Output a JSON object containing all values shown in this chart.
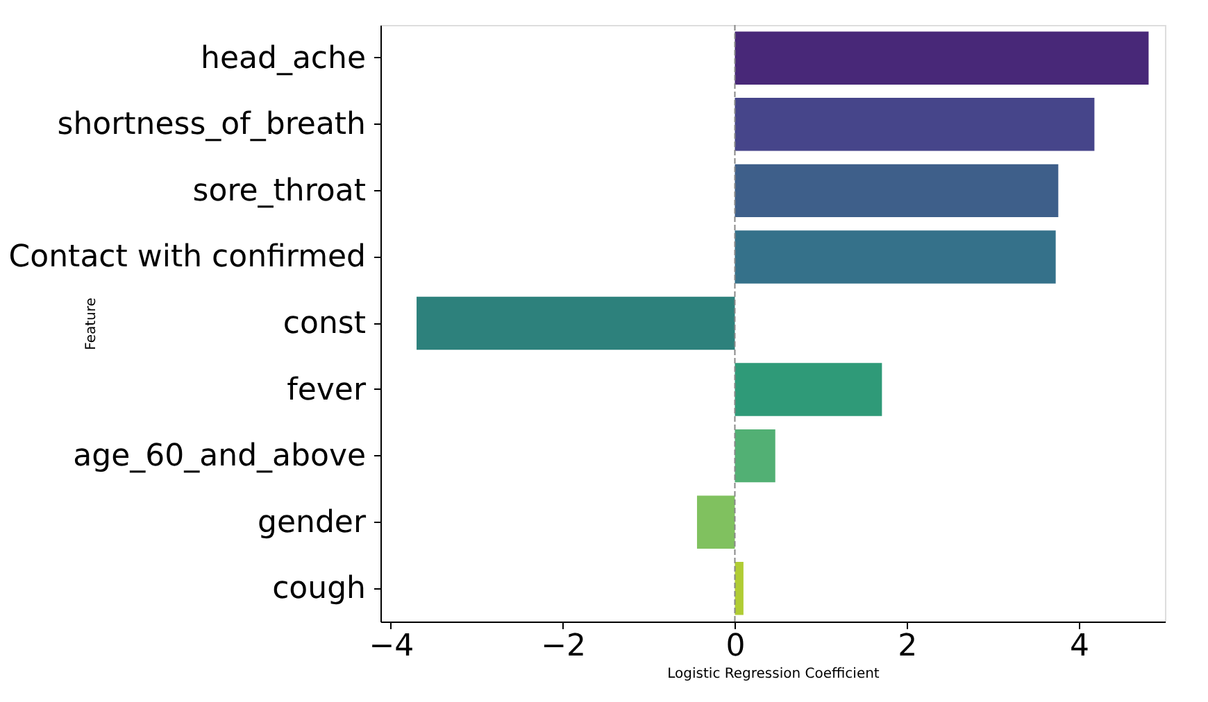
{
  "chart_data": {
    "type": "bar",
    "orientation": "horizontal",
    "xlabel": "Logistic Regression Coefficient",
    "ylabel": "Feature",
    "categories": [
      "head_ache",
      "shortness_of_breath",
      "sore_throat",
      "Contact with confirmed",
      "const",
      "fever",
      "age_60_and_above",
      "gender",
      "cough"
    ],
    "values": [
      4.81,
      4.18,
      3.76,
      3.73,
      -3.7,
      1.71,
      0.47,
      -0.44,
      0.1
    ],
    "colors": [
      "#482878",
      "#46458a",
      "#3e5f8a",
      "#35718a",
      "#2d817c",
      "#2f9a78",
      "#52b074",
      "#80c15f",
      "#b0cc34"
    ],
    "xlim": [
      -4.12,
      5.0
    ],
    "xticks": [
      {
        "value": -4,
        "label": "−4"
      },
      {
        "value": -2,
        "label": "−2"
      },
      0,
      2,
      4
    ],
    "ref_lines": [
      {
        "axis": "x",
        "value": 0,
        "color": "#888888",
        "line_style": "dashed"
      }
    ],
    "grid": false
  }
}
